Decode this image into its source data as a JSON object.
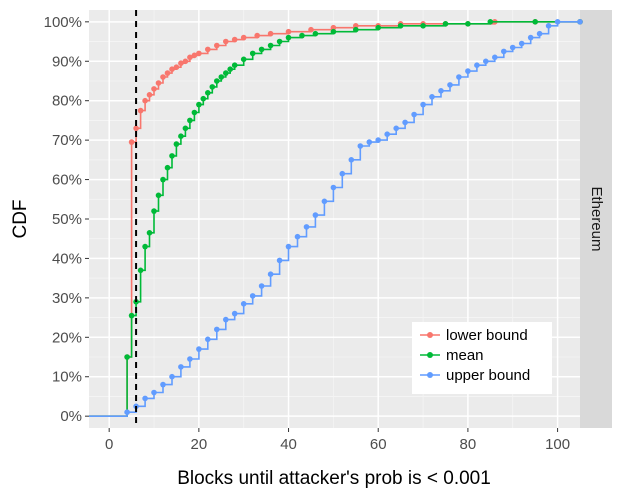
{
  "chart_data": {
    "type": "line",
    "style": "step-ecdf",
    "xlabel": "Blocks until attacker's prob is < 0.001",
    "ylabel": "CDF",
    "facet_label": "Ethereum",
    "xlim": [
      -4.5,
      105
    ],
    "ylim": [
      -0.03,
      1.03
    ],
    "x_ticks": [
      0,
      20,
      40,
      60,
      80,
      100
    ],
    "x_tick_labels": [
      "0",
      "20",
      "40",
      "60",
      "80",
      "100"
    ],
    "y_ticks": [
      0,
      0.1,
      0.2,
      0.3,
      0.4,
      0.5,
      0.6,
      0.7,
      0.8,
      0.9,
      1.0
    ],
    "y_tick_labels": [
      "0%",
      "10%",
      "20%",
      "30%",
      "40%",
      "50%",
      "60%",
      "70%",
      "80%",
      "90%",
      "100%"
    ],
    "grid": true,
    "legend_position": "bottom-right",
    "vline": {
      "x": 6,
      "style": "dashed",
      "color": "#000000"
    },
    "series": [
      {
        "name": "lower bound",
        "color": "#F8766D",
        "x": [
          -4.5,
          4,
          5,
          6,
          7,
          8,
          9,
          10,
          11,
          12,
          13,
          14,
          15,
          16,
          17,
          18,
          19,
          20,
          22,
          24,
          26,
          28,
          30,
          33,
          36,
          40,
          45,
          50,
          55,
          60,
          65,
          70,
          75,
          80,
          86,
          95,
          105
        ],
        "y": [
          0,
          0.15,
          0.695,
          0.73,
          0.775,
          0.8,
          0.815,
          0.83,
          0.845,
          0.86,
          0.87,
          0.88,
          0.885,
          0.895,
          0.9,
          0.91,
          0.915,
          0.92,
          0.93,
          0.94,
          0.95,
          0.955,
          0.96,
          0.965,
          0.97,
          0.975,
          0.98,
          0.985,
          0.99,
          0.99,
          0.995,
          0.995,
          0.995,
          0.995,
          1.0,
          1.0,
          1.0
        ]
      },
      {
        "name": "mean",
        "color": "#00BA38",
        "x": [
          -4.5,
          4,
          5,
          6,
          7,
          8,
          9,
          10,
          11,
          12,
          13,
          14,
          15,
          16,
          17,
          18,
          19,
          20,
          21,
          22,
          23,
          24,
          25,
          26,
          27,
          28,
          30,
          32,
          34,
          36,
          38,
          40,
          43,
          46,
          50,
          55,
          60,
          65,
          70,
          75,
          80,
          85,
          95,
          105
        ],
        "y": [
          0,
          0.15,
          0.255,
          0.29,
          0.37,
          0.43,
          0.465,
          0.52,
          0.56,
          0.6,
          0.63,
          0.66,
          0.69,
          0.71,
          0.73,
          0.75,
          0.77,
          0.79,
          0.805,
          0.82,
          0.835,
          0.85,
          0.86,
          0.87,
          0.88,
          0.89,
          0.905,
          0.92,
          0.93,
          0.94,
          0.95,
          0.96,
          0.965,
          0.97,
          0.975,
          0.98,
          0.985,
          0.99,
          0.99,
          0.995,
          0.995,
          1.0,
          1.0,
          1.0
        ]
      },
      {
        "name": "upper bound",
        "color": "#619CFF",
        "x": [
          -4.5,
          4,
          6,
          8,
          10,
          12,
          14,
          16,
          18,
          20,
          22,
          24,
          26,
          28,
          30,
          32,
          34,
          36,
          38,
          40,
          42,
          44,
          46,
          48,
          50,
          52,
          54,
          56,
          58,
          60,
          62,
          64,
          66,
          68,
          70,
          72,
          74,
          76,
          78,
          80,
          82,
          84,
          86,
          88,
          90,
          92,
          94,
          96,
          98,
          100,
          105
        ],
        "y": [
          0,
          0.01,
          0.025,
          0.045,
          0.06,
          0.08,
          0.1,
          0.125,
          0.145,
          0.17,
          0.195,
          0.22,
          0.245,
          0.26,
          0.285,
          0.305,
          0.33,
          0.36,
          0.395,
          0.43,
          0.455,
          0.48,
          0.51,
          0.545,
          0.58,
          0.615,
          0.65,
          0.685,
          0.695,
          0.7,
          0.715,
          0.73,
          0.745,
          0.765,
          0.79,
          0.81,
          0.825,
          0.84,
          0.86,
          0.875,
          0.89,
          0.9,
          0.91,
          0.925,
          0.935,
          0.945,
          0.96,
          0.97,
          0.99,
          1.0,
          1.0
        ]
      }
    ]
  }
}
